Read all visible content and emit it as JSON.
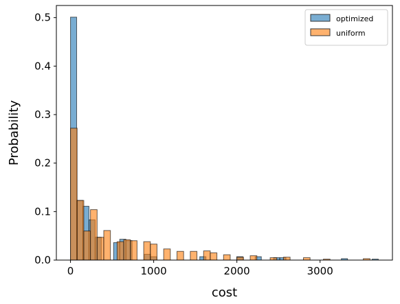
{
  "chart_data": {
    "type": "bar",
    "xlabel": "cost",
    "ylabel": "Probability",
    "xlim": [
      -170,
      3870
    ],
    "ylim": [
      0,
      0.525
    ],
    "xticks": [
      0,
      1000,
      2000,
      3000
    ],
    "yticks": [
      0.0,
      0.1,
      0.2,
      0.3,
      0.4,
      0.5
    ],
    "xtick_labels": [
      "0",
      "1000",
      "2000",
      "3000"
    ],
    "ytick_labels": [
      "0.0",
      "0.1",
      "0.2",
      "0.3",
      "0.4",
      "0.5"
    ],
    "grid": false,
    "legend_position": "top-right",
    "series": [
      {
        "name": "optimized",
        "color": "#1f77b4",
        "bin_width": 74,
        "bins": [
          [
            0,
            0.501
          ],
          [
            74,
            0.123
          ],
          [
            148,
            0.111
          ],
          [
            222,
            0.083
          ],
          [
            296,
            0.047
          ],
          [
            518,
            0.036
          ],
          [
            592,
            0.043
          ],
          [
            666,
            0.04
          ],
          [
            888,
            0.012
          ],
          [
            962,
            0.007
          ],
          [
            1554,
            0.007
          ],
          [
            1998,
            0.007
          ],
          [
            2220,
            0.007
          ],
          [
            2442,
            0.005
          ],
          [
            2516,
            0.005
          ],
          [
            3256,
            0.003
          ],
          [
            3626,
            0.002
          ]
        ]
      },
      {
        "name": "uniform",
        "color": "#ff7f0e",
        "bin_width": 80,
        "bins": [
          [
            0,
            0.272
          ],
          [
            80,
            0.123
          ],
          [
            160,
            0.06
          ],
          [
            240,
            0.104
          ],
          [
            320,
            0.047
          ],
          [
            400,
            0.061
          ],
          [
            560,
            0.038
          ],
          [
            640,
            0.042
          ],
          [
            720,
            0.04
          ],
          [
            880,
            0.038
          ],
          [
            960,
            0.033
          ],
          [
            1120,
            0.023
          ],
          [
            1280,
            0.018
          ],
          [
            1440,
            0.018
          ],
          [
            1600,
            0.019
          ],
          [
            1680,
            0.015
          ],
          [
            1840,
            0.011
          ],
          [
            2000,
            0.006
          ],
          [
            2160,
            0.009
          ],
          [
            2400,
            0.005
          ],
          [
            2560,
            0.006
          ],
          [
            2800,
            0.005
          ],
          [
            3040,
            0.002
          ],
          [
            3520,
            0.003
          ]
        ]
      }
    ]
  }
}
